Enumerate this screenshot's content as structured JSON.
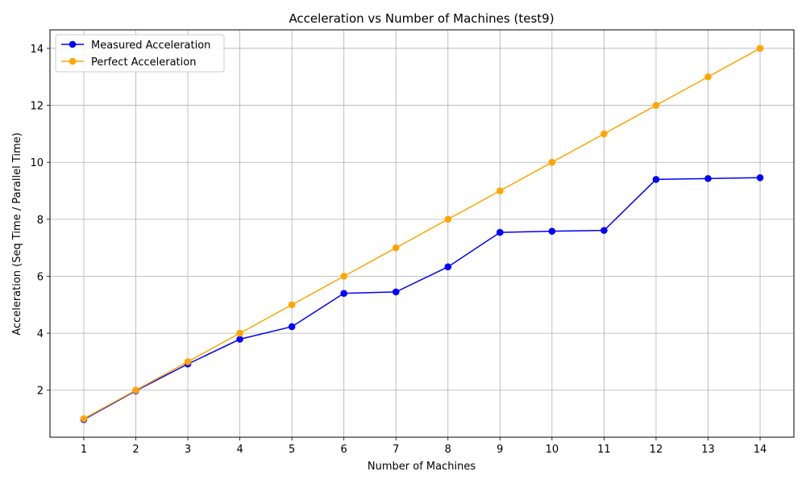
{
  "chart_data": {
    "type": "line",
    "title": "Acceleration vs Number of Machines (test9)",
    "xlabel": "Number of Machines",
    "ylabel": "Acceleration (Seq Time / Parallel Time)",
    "x": [
      1,
      2,
      3,
      4,
      5,
      6,
      7,
      8,
      9,
      10,
      11,
      12,
      13,
      14
    ],
    "xlim": [
      0.35,
      14.65
    ],
    "ylim": [
      0.35,
      14.65
    ],
    "xticks": [
      "1",
      "2",
      "3",
      "4",
      "5",
      "6",
      "7",
      "8",
      "9",
      "10",
      "11",
      "12",
      "13",
      "14"
    ],
    "yticks": [
      2,
      4,
      6,
      8,
      10,
      12,
      14
    ],
    "grid": true,
    "legend_position": "top-left",
    "series": [
      {
        "name": "Measured Acceleration",
        "color": "#0000ff",
        "values": [
          0.97,
          1.98,
          2.92,
          3.79,
          4.23,
          5.4,
          5.45,
          6.33,
          7.54,
          7.58,
          7.61,
          9.4,
          9.43,
          9.46
        ]
      },
      {
        "name": "Perfect Acceleration",
        "color": "#ffa500",
        "values": [
          1,
          2,
          3,
          4,
          5,
          6,
          7,
          8,
          9,
          10,
          11,
          12,
          13,
          14
        ]
      }
    ]
  }
}
